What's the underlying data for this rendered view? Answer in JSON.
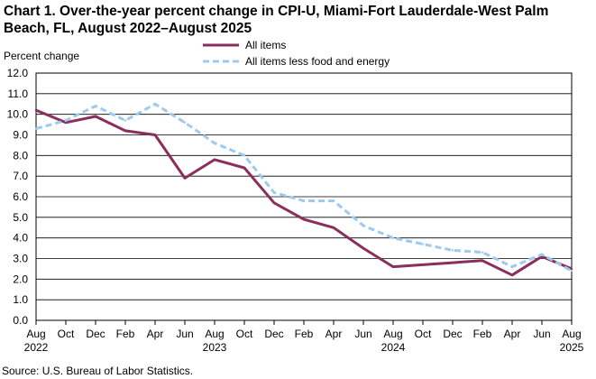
{
  "chart_data": {
    "type": "line",
    "title": "Chart 1. Over-the-year percent change in CPI-U, Miami-Fort Lauderdale-West Palm Beach, FL, August 2022–August 2025",
    "ylabel": "Percent change",
    "xlabel": "",
    "source": "Source: U.S. Bureau of Labor Statistics.",
    "ylim": [
      0,
      12
    ],
    "yticks": [
      "0.0",
      "1.0",
      "2.0",
      "3.0",
      "4.0",
      "5.0",
      "6.0",
      "7.0",
      "8.0",
      "9.0",
      "10.0",
      "11.0",
      "12.0"
    ],
    "xticks": [
      {
        "label": "Aug",
        "year": "2022"
      },
      {
        "label": "Oct",
        "year": ""
      },
      {
        "label": "Dec",
        "year": ""
      },
      {
        "label": "Feb",
        "year": ""
      },
      {
        "label": "Apr",
        "year": ""
      },
      {
        "label": "Jun",
        "year": ""
      },
      {
        "label": "Aug",
        "year": "2023"
      },
      {
        "label": "Oct",
        "year": ""
      },
      {
        "label": "Dec",
        "year": ""
      },
      {
        "label": "Feb",
        "year": ""
      },
      {
        "label": "Apr",
        "year": ""
      },
      {
        "label": "Jun",
        "year": ""
      },
      {
        "label": "Aug",
        "year": "2024"
      },
      {
        "label": "Oct",
        "year": ""
      },
      {
        "label": "Dec",
        "year": ""
      },
      {
        "label": "Feb",
        "year": ""
      },
      {
        "label": "Apr",
        "year": ""
      },
      {
        "label": "Jun",
        "year": ""
      },
      {
        "label": "Aug",
        "year": "2025"
      }
    ],
    "grid": true,
    "legend_position": "top",
    "series": [
      {
        "name": "All items",
        "color": "#8b2e5c",
        "style": "solid",
        "values": [
          10.2,
          9.6,
          9.9,
          9.2,
          9.0,
          6.9,
          7.8,
          7.4,
          5.7,
          4.9,
          4.5,
          3.5,
          2.6,
          2.7,
          2.8,
          2.9,
          2.2,
          3.1,
          2.5
        ]
      },
      {
        "name": "All items less food and energy",
        "color": "#9dcaf0",
        "style": "dashed",
        "values": [
          9.3,
          9.7,
          10.4,
          9.7,
          10.5,
          9.6,
          8.6,
          8.0,
          6.2,
          5.8,
          5.8,
          4.6,
          4.0,
          3.7,
          3.4,
          3.3,
          2.6,
          3.2,
          2.4
        ]
      }
    ]
  }
}
